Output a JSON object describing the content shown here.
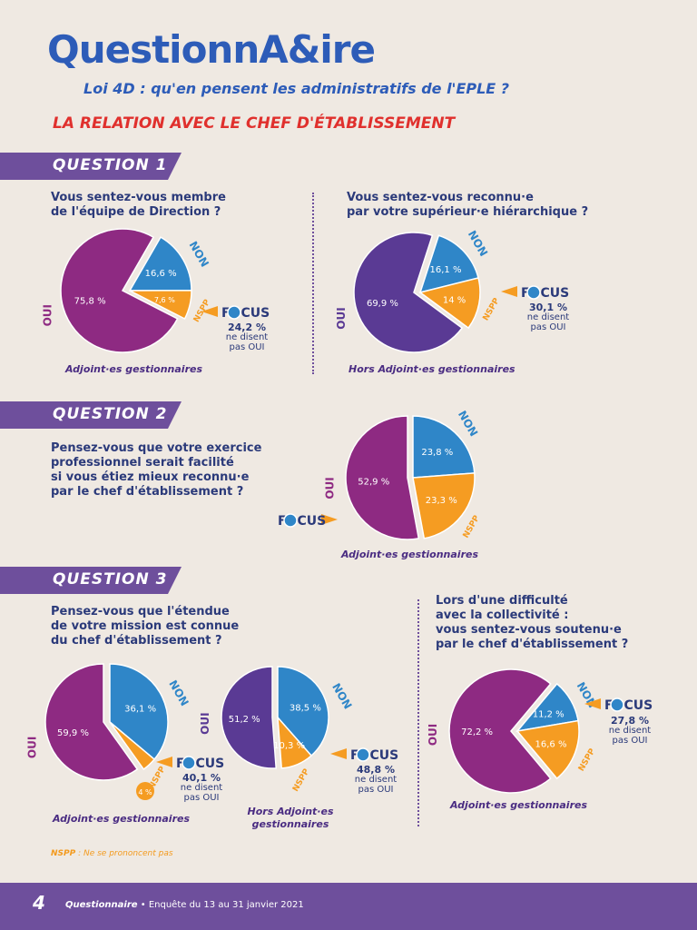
{
  "header": {
    "logo": "QuestionnA&ire",
    "subtitle": "Loi 4D : qu'en pensent les administratifs de l'EPLE ?",
    "section_title": "LA RELATION AVEC LE CHEF D'ÉTABLISSEMENT"
  },
  "colors": {
    "purple": "#8e2a82",
    "blue": "#2f86c8",
    "orange": "#f59c22",
    "dark_purple": "#5a3a94",
    "banner": "#6e4f9c",
    "red": "#e0302d",
    "navy": "#2b3a7a"
  },
  "questions": {
    "q1": {
      "label": "QUESTION 1",
      "left_text": "Vous sentez-vous membre\nde l'équipe de Direction ?",
      "right_text": "Vous sentez-vous reconnu·e\npar votre supérieur·e hiérarchique ?"
    },
    "q2": {
      "label": "QUESTION 2",
      "text": "Pensez-vous que votre exercice\nprofessionnel serait facilité\nsi vous étiez mieux reconnu·e\npar le chef d'établissement ?"
    },
    "q3": {
      "label": "QUESTION 3",
      "left_text": "Pensez-vous que l'étendue\nde votre mission est connue\ndu chef d'établissement ?",
      "right_text": "Lors d'une difficulté\navec la collectivité :\nvous sentez-vous soutenu·e\npar le chef d'établissement ?"
    }
  },
  "focus": {
    "label": "FOCUS",
    "note": "ne disent\npas OUI",
    "q1a": "24,2 %",
    "q1b": "30,1 %",
    "q3a": "40,1 %",
    "q3b": "48,8 %",
    "q3c": "27,8 %"
  },
  "chart_data": [
    {
      "type": "pie",
      "id": "q1a",
      "caption": "Adjoint·es gestionnaires",
      "slices": [
        {
          "label": "OUI",
          "value": 75.8,
          "text": "75,8 %"
        },
        {
          "label": "NON",
          "value": 16.6,
          "text": "16,6 %"
        },
        {
          "label": "NSPP",
          "value": 7.6,
          "text": "7,6 %"
        }
      ]
    },
    {
      "type": "pie",
      "id": "q1b",
      "caption": "Hors Adjoint·es gestionnaires",
      "slices": [
        {
          "label": "OUI",
          "value": 69.9,
          "text": "69,9 %"
        },
        {
          "label": "NON",
          "value": 16.1,
          "text": "16,1 %"
        },
        {
          "label": "NSPP",
          "value": 14,
          "text": "14 %"
        }
      ]
    },
    {
      "type": "pie",
      "id": "q2",
      "caption": "Adjoint·es gestionnaires",
      "slices": [
        {
          "label": "OUI",
          "value": 52.9,
          "text": "52,9 %"
        },
        {
          "label": "NON",
          "value": 23.8,
          "text": "23,8 %"
        },
        {
          "label": "NSPP",
          "value": 23.3,
          "text": "23,3 %"
        }
      ]
    },
    {
      "type": "pie",
      "id": "q3a",
      "caption": "Adjoint·es gestionnaires",
      "slices": [
        {
          "label": "OUI",
          "value": 59.9,
          "text": "59,9 %"
        },
        {
          "label": "NON",
          "value": 36.1,
          "text": "36,1 %"
        },
        {
          "label": "NSPP",
          "value": 4,
          "text": "4 %"
        }
      ]
    },
    {
      "type": "pie",
      "id": "q3b",
      "caption": "Hors Adjoint·es\ngestionnaires",
      "slices": [
        {
          "label": "OUI",
          "value": 51.2,
          "text": "51,2 %"
        },
        {
          "label": "NON",
          "value": 38.5,
          "text": "38,5 %"
        },
        {
          "label": "NSPP",
          "value": 10.3,
          "text": "10,3 %"
        }
      ]
    },
    {
      "type": "pie",
      "id": "q3c",
      "caption": "Adjoint·es gestionnaires",
      "slices": [
        {
          "label": "OUI",
          "value": 72.2,
          "text": "72,2 %"
        },
        {
          "label": "NON",
          "value": 11.2,
          "text": "11,2 %"
        },
        {
          "label": "NSPP",
          "value": 16.6,
          "text": "16,6 %"
        }
      ]
    }
  ],
  "legend": {
    "key": "NSPP",
    "text": " : Ne se prononcent pas"
  },
  "footer": {
    "page": "4",
    "title": "Questionnaire",
    "text": " • Enquête du 13 au 31 janvier 2021"
  }
}
